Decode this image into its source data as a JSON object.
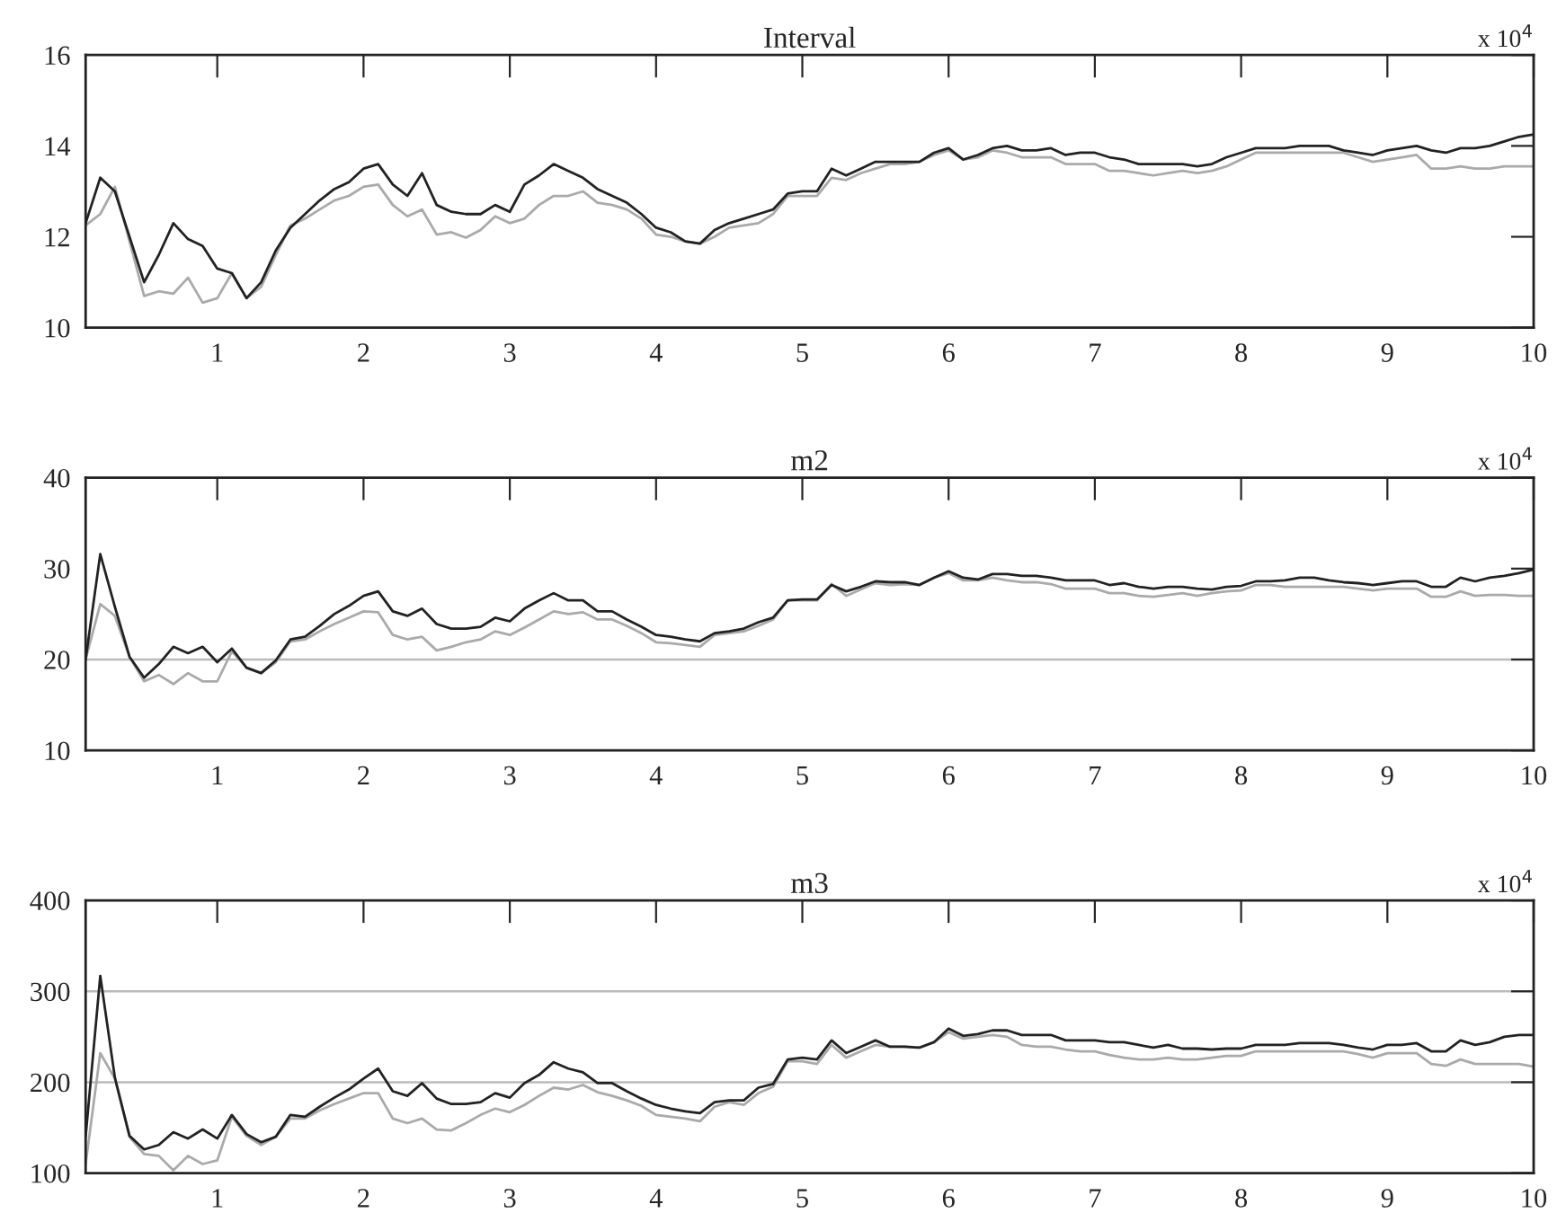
{
  "chart_data": [
    {
      "type": "line",
      "title": "Interval",
      "annotations": [
        "x 10$^{4}$"
      ],
      "xlim": [
        0.1,
        10
      ],
      "xticks": [
        1,
        2,
        3,
        4,
        5,
        6,
        7,
        8,
        9,
        10
      ],
      "ylim": [
        10,
        16
      ],
      "yticks": [
        10,
        12,
        14,
        16
      ],
      "grid": false,
      "x": [
        0.1,
        0.2,
        0.3,
        0.4,
        0.5,
        0.6,
        0.7,
        0.8,
        0.9,
        1.0,
        1.1,
        1.2,
        1.3,
        1.4,
        1.5,
        1.6,
        1.7,
        1.8,
        1.9,
        2.0,
        2.1,
        2.2,
        2.3,
        2.4,
        2.5,
        2.6,
        2.7,
        2.8,
        2.9,
        3.0,
        3.1,
        3.2,
        3.3,
        3.4,
        3.5,
        3.6,
        3.7,
        3.8,
        3.9,
        4.0,
        4.1,
        4.2,
        4.3,
        4.4,
        4.5,
        4.6,
        4.7,
        4.8,
        4.9,
        5.0,
        5.1,
        5.2,
        5.3,
        5.4,
        5.5,
        5.6,
        5.7,
        5.8,
        5.9,
        6.0,
        6.1,
        6.2,
        6.3,
        6.4,
        6.5,
        6.6,
        6.7,
        6.8,
        6.9,
        7.0,
        7.1,
        7.2,
        7.3,
        7.4,
        7.5,
        7.6,
        7.7,
        7.8,
        7.9,
        8.0,
        8.1,
        8.2,
        8.3,
        8.4,
        8.5,
        8.6,
        8.7,
        8.8,
        8.9,
        9.0,
        9.1,
        9.2,
        9.3,
        9.4,
        9.5,
        9.6,
        9.7,
        9.8,
        9.9,
        10.0
      ],
      "series": [
        {
          "color": "#aaaaaa",
          "values": [
            12.25,
            12.5,
            13.1,
            11.9,
            10.7,
            10.8,
            10.75,
            11.1,
            10.55,
            10.65,
            11.2,
            10.65,
            10.9,
            11.6,
            12.25,
            12.4,
            12.6,
            12.8,
            12.9,
            13.1,
            13.15,
            12.7,
            12.45,
            12.6,
            12.05,
            12.1,
            11.98,
            12.15,
            12.45,
            12.3,
            12.4,
            12.7,
            12.9,
            12.9,
            13.0,
            12.75,
            12.7,
            12.6,
            12.4,
            12.05,
            12.0,
            11.9,
            11.85,
            12.0,
            12.2,
            12.25,
            12.3,
            12.5,
            12.9,
            12.9,
            12.9,
            13.3,
            13.25,
            13.4,
            13.5,
            13.6,
            13.6,
            13.65,
            13.8,
            13.9,
            13.7,
            13.75,
            13.9,
            13.85,
            13.75,
            13.75,
            13.75,
            13.6,
            13.6,
            13.6,
            13.45,
            13.45,
            13.4,
            13.35,
            13.4,
            13.45,
            13.4,
            13.45,
            13.55,
            13.7,
            13.85,
            13.85,
            13.85,
            13.85,
            13.85,
            13.85,
            13.85,
            13.75,
            13.65,
            13.7,
            13.75,
            13.8,
            13.5,
            13.5,
            13.55,
            13.5,
            13.5,
            13.55,
            13.55,
            13.55
          ]
        },
        {
          "color": "#222222",
          "values": [
            12.3,
            13.3,
            13.0,
            12.0,
            11.0,
            11.6,
            12.3,
            11.95,
            11.8,
            11.3,
            11.2,
            10.65,
            11.0,
            11.7,
            12.2,
            12.5,
            12.8,
            13.05,
            13.2,
            13.5,
            13.6,
            13.15,
            12.9,
            13.4,
            12.7,
            12.55,
            12.5,
            12.5,
            12.7,
            12.55,
            13.15,
            13.35,
            13.6,
            13.45,
            13.3,
            13.05,
            12.9,
            12.75,
            12.5,
            12.2,
            12.1,
            11.9,
            11.85,
            12.15,
            12.3,
            12.4,
            12.5,
            12.6,
            12.95,
            13.0,
            13.0,
            13.5,
            13.35,
            13.5,
            13.65,
            13.65,
            13.65,
            13.65,
            13.85,
            13.95,
            13.7,
            13.8,
            13.95,
            14.0,
            13.9,
            13.9,
            13.95,
            13.8,
            13.85,
            13.85,
            13.75,
            13.7,
            13.6,
            13.6,
            13.6,
            13.6,
            13.55,
            13.6,
            13.75,
            13.85,
            13.95,
            13.95,
            13.95,
            14.0,
            14.0,
            14.0,
            13.9,
            13.85,
            13.8,
            13.9,
            13.95,
            14.0,
            13.9,
            13.85,
            13.95,
            13.95,
            14.0,
            14.1,
            14.2,
            14.25
          ]
        }
      ]
    },
    {
      "type": "line",
      "title": "m2",
      "annotations": [
        "x 10$^{4}$"
      ],
      "xlim": [
        0.1,
        10
      ],
      "xticks": [
        1,
        2,
        3,
        4,
        5,
        6,
        7,
        8,
        9,
        10
      ],
      "ylim": [
        10,
        40
      ],
      "yticks": [
        10,
        20,
        30,
        40
      ],
      "grid": false,
      "ref_lines": [
        {
          "axis": "y",
          "value": 20,
          "color": "#bbbbbb"
        }
      ],
      "x": [
        0.1,
        0.2,
        0.3,
        0.4,
        0.5,
        0.6,
        0.7,
        0.8,
        0.9,
        1.0,
        1.1,
        1.2,
        1.3,
        1.4,
        1.5,
        1.6,
        1.7,
        1.8,
        1.9,
        2.0,
        2.1,
        2.2,
        2.3,
        2.4,
        2.5,
        2.6,
        2.7,
        2.8,
        2.9,
        3.0,
        3.1,
        3.2,
        3.3,
        3.4,
        3.5,
        3.6,
        3.7,
        3.8,
        3.9,
        4.0,
        4.1,
        4.2,
        4.3,
        4.4,
        4.5,
        4.6,
        4.7,
        4.8,
        4.9,
        5.0,
        5.1,
        5.2,
        5.3,
        5.4,
        5.5,
        5.6,
        5.7,
        5.8,
        5.9,
        6.0,
        6.1,
        6.2,
        6.3,
        6.4,
        6.5,
        6.6,
        6.7,
        6.8,
        6.9,
        7.0,
        7.1,
        7.2,
        7.3,
        7.4,
        7.5,
        7.6,
        7.7,
        7.8,
        7.9,
        8.0,
        8.1,
        8.2,
        8.3,
        8.4,
        8.5,
        8.6,
        8.7,
        8.8,
        8.9,
        9.0,
        9.1,
        9.2,
        9.3,
        9.4,
        9.5,
        9.6,
        9.7,
        9.8,
        9.9,
        10.0
      ],
      "series": [
        {
          "color": "#aaaaaa",
          "values": [
            20,
            26.1,
            24.8,
            20.3,
            17.6,
            18.3,
            17.3,
            18.5,
            17.6,
            17.6,
            20.9,
            19.1,
            18.5,
            19.7,
            22.0,
            22.2,
            23.1,
            23.9,
            24.6,
            25.3,
            25.2,
            22.7,
            22.2,
            22.5,
            21.0,
            21.4,
            21.9,
            22.2,
            23.1,
            22.7,
            23.5,
            24.4,
            25.3,
            25.0,
            25.2,
            24.4,
            24.4,
            23.7,
            22.9,
            21.9,
            21.8,
            21.6,
            21.4,
            22.7,
            22.9,
            23.1,
            23.7,
            24.4,
            26.5,
            26.5,
            26.5,
            28.3,
            27.0,
            27.7,
            28.4,
            28.2,
            28.3,
            28.2,
            29.0,
            29.5,
            28.7,
            28.7,
            29.0,
            28.7,
            28.5,
            28.5,
            28.3,
            27.8,
            27.8,
            27.8,
            27.3,
            27.3,
            27.0,
            26.9,
            27.1,
            27.3,
            27.0,
            27.3,
            27.5,
            27.6,
            28.2,
            28.2,
            28.0,
            28.0,
            28.0,
            28.0,
            28.0,
            27.8,
            27.6,
            27.8,
            27.8,
            27.8,
            26.9,
            26.9,
            27.5,
            27.0,
            27.1,
            27.1,
            27.0,
            27.0
          ]
        },
        {
          "color": "#222222",
          "values": [
            20,
            31.6,
            25.8,
            20.3,
            18,
            19.5,
            21.4,
            20.7,
            21.4,
            19.7,
            21.2,
            19.1,
            18.5,
            19.9,
            22.2,
            22.5,
            23.7,
            25.0,
            25.9,
            27.0,
            27.5,
            25.3,
            24.8,
            25.6,
            23.9,
            23.4,
            23.4,
            23.6,
            24.6,
            24.2,
            25.6,
            26.5,
            27.3,
            26.5,
            26.5,
            25.3,
            25.3,
            24.4,
            23.6,
            22.7,
            22.5,
            22.2,
            22.0,
            22.9,
            23.1,
            23.4,
            24.1,
            24.6,
            26.5,
            26.6,
            26.6,
            28.2,
            27.5,
            28.0,
            28.6,
            28.5,
            28.5,
            28.2,
            29.0,
            29.7,
            29.0,
            28.8,
            29.4,
            29.4,
            29.2,
            29.2,
            29.0,
            28.7,
            28.7,
            28.7,
            28.2,
            28.4,
            28.0,
            27.8,
            28.0,
            28.0,
            27.8,
            27.7,
            28.0,
            28.1,
            28.6,
            28.6,
            28.7,
            29.0,
            29.0,
            28.7,
            28.5,
            28.4,
            28.2,
            28.4,
            28.6,
            28.6,
            28.0,
            28.0,
            29.0,
            28.6,
            29.0,
            29.2,
            29.5,
            29.9
          ]
        }
      ]
    },
    {
      "type": "line",
      "title": "m3",
      "annotations": [
        "x 10$^{4}$"
      ],
      "xlim": [
        0.1,
        10
      ],
      "xticks": [
        1,
        2,
        3,
        4,
        5,
        6,
        7,
        8,
        9,
        10
      ],
      "ylim": [
        100,
        400
      ],
      "yticks": [
        100,
        200,
        300,
        400
      ],
      "grid": false,
      "ref_lines": [
        {
          "axis": "y",
          "value": 200,
          "color": "#bbbbbb"
        },
        {
          "axis": "y",
          "value": 300,
          "color": "#bbbbbb"
        }
      ],
      "x": [
        0.1,
        0.2,
        0.3,
        0.4,
        0.5,
        0.6,
        0.7,
        0.8,
        0.9,
        1.0,
        1.1,
        1.2,
        1.3,
        1.4,
        1.5,
        1.6,
        1.7,
        1.8,
        1.9,
        2.0,
        2.1,
        2.2,
        2.3,
        2.4,
        2.5,
        2.6,
        2.7,
        2.8,
        2.9,
        3.0,
        3.1,
        3.2,
        3.3,
        3.4,
        3.5,
        3.6,
        3.7,
        3.8,
        3.9,
        4.0,
        4.1,
        4.2,
        4.3,
        4.4,
        4.5,
        4.6,
        4.7,
        4.8,
        4.9,
        5.0,
        5.1,
        5.2,
        5.3,
        5.4,
        5.5,
        5.6,
        5.7,
        5.8,
        5.9,
        6.0,
        6.1,
        6.2,
        6.3,
        6.4,
        6.5,
        6.6,
        6.7,
        6.8,
        6.9,
        7.0,
        7.1,
        7.2,
        7.3,
        7.4,
        7.5,
        7.6,
        7.7,
        7.8,
        7.9,
        8.0,
        8.1,
        8.2,
        8.3,
        8.4,
        8.5,
        8.6,
        8.7,
        8.8,
        8.9,
        9.0,
        9.1,
        9.2,
        9.3,
        9.4,
        9.5,
        9.6,
        9.7,
        9.8,
        9.9,
        10.0
      ],
      "series": [
        {
          "color": "#aaaaaa",
          "values": [
            110,
            232,
            204,
            140,
            121,
            119,
            103,
            119,
            110,
            114,
            162,
            141,
            131,
            140,
            160,
            160,
            169,
            176,
            182,
            188,
            188,
            160,
            155,
            160,
            148,
            147,
            155,
            164,
            171,
            167,
            175,
            185,
            194,
            192,
            197,
            189,
            185,
            180,
            174,
            164,
            162,
            160,
            157,
            173,
            178,
            175,
            188,
            195,
            223,
            223,
            220,
            241,
            227,
            234,
            241,
            239,
            239,
            238,
            244,
            255,
            248,
            250,
            252,
            250,
            241,
            239,
            239,
            236,
            234,
            234,
            230,
            227,
            225,
            225,
            227,
            225,
            225,
            227,
            229,
            229,
            234,
            234,
            234,
            234,
            234,
            234,
            234,
            231,
            227,
            232,
            232,
            232,
            220,
            218,
            225,
            220,
            220,
            220,
            220,
            217
          ]
        },
        {
          "color": "#222222",
          "values": [
            140,
            317,
            205,
            141,
            126,
            131,
            145,
            138,
            148,
            138,
            164,
            143,
            134,
            140,
            164,
            162,
            173,
            183,
            192,
            204,
            215,
            190,
            185,
            199,
            182,
            176,
            176,
            178,
            188,
            183,
            199,
            208,
            222,
            215,
            211,
            199,
            199,
            190,
            182,
            175,
            171,
            168,
            166,
            178,
            180,
            180,
            194,
            198,
            225,
            227,
            225,
            246,
            232,
            239,
            246,
            239,
            239,
            238,
            244,
            259,
            251,
            253,
            257,
            257,
            252,
            252,
            252,
            246,
            246,
            246,
            244,
            244,
            241,
            238,
            241,
            237,
            237,
            236,
            237,
            237,
            241,
            241,
            241,
            243,
            243,
            243,
            241,
            238,
            236,
            241,
            241,
            243,
            234,
            234,
            246,
            241,
            244,
            250,
            252,
            252
          ]
        }
      ]
    }
  ]
}
